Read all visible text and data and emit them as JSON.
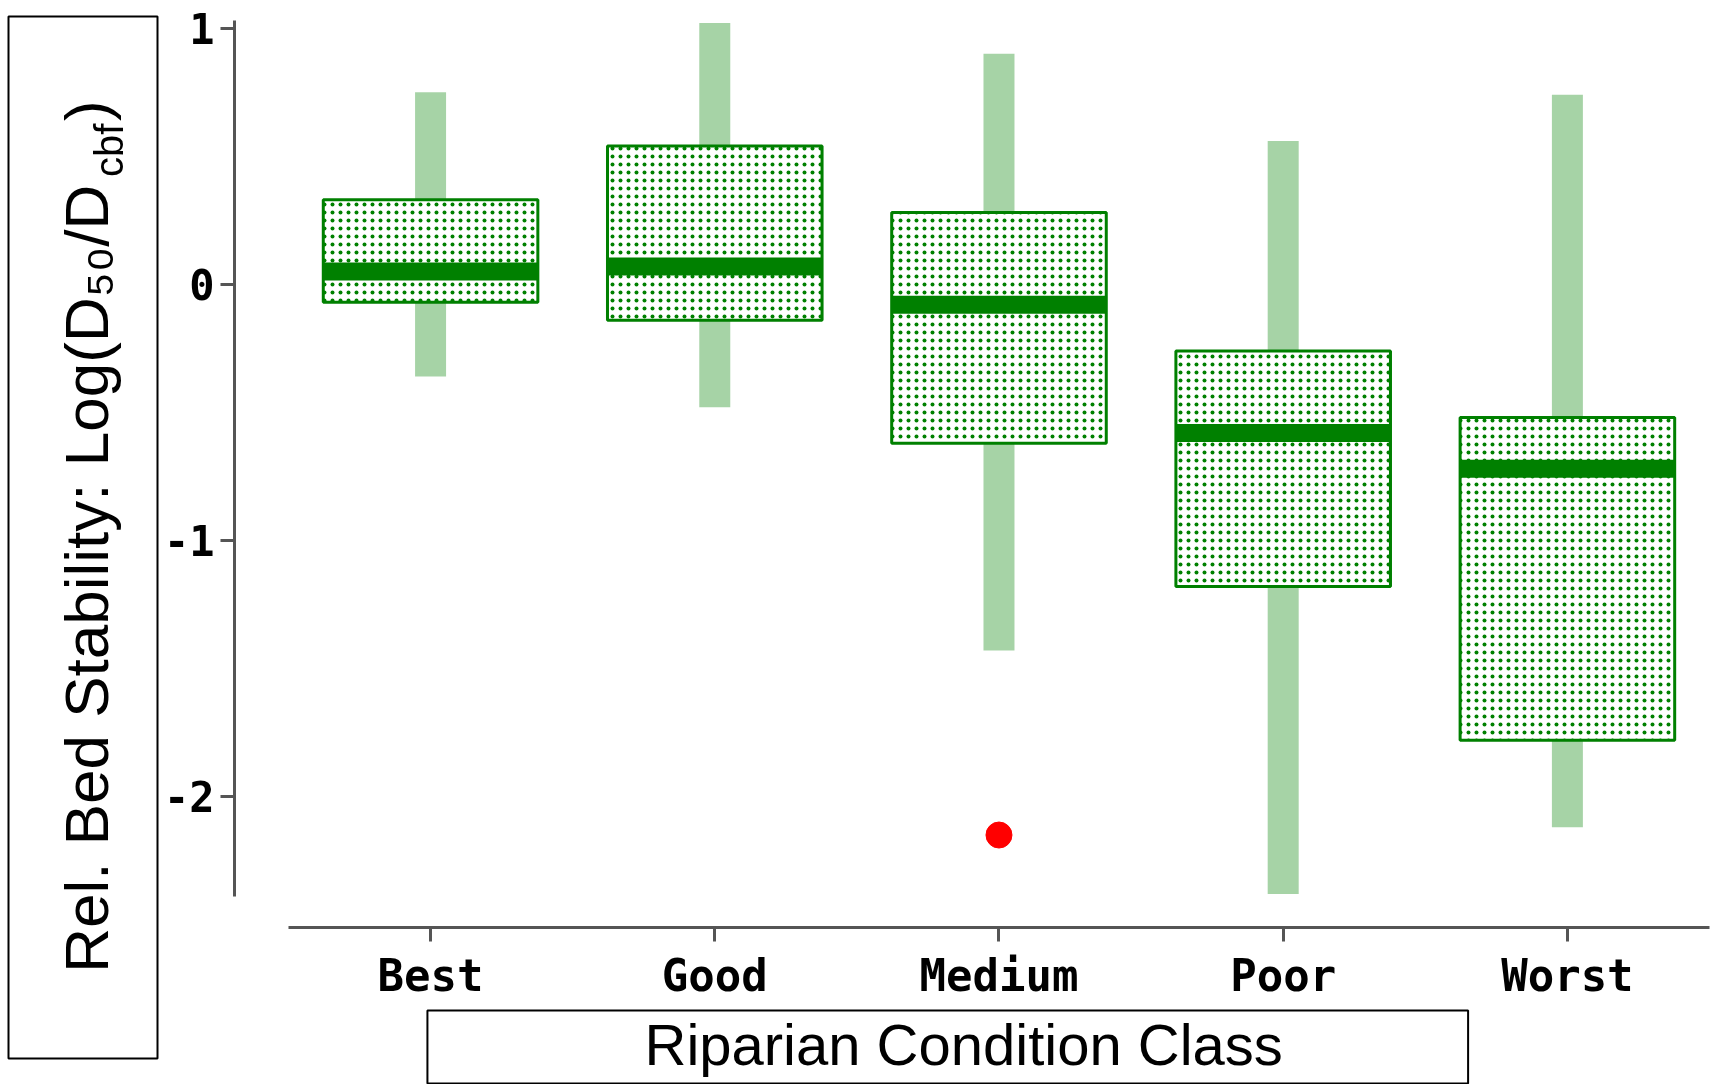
{
  "chart_data": {
    "type": "box",
    "categories": [
      "Best",
      "Good",
      "Medium",
      "Poor",
      "Worst"
    ],
    "xlabel": "Riparian Condition Class",
    "ylabel": "Rel. Bed Stability: Log(D₅₀/D$_{cbf}$)",
    "ylim": [
      -2.39,
      1.03
    ],
    "yticks": [
      -2,
      -1,
      0,
      1
    ],
    "grid": false,
    "marker": "circle",
    "series": [
      {
        "color": "#008000",
        "boxes": [
          {
            "low": -0.36,
            "q1": -0.07,
            "median": 0.05,
            "q3": 0.33,
            "high": 0.75
          },
          {
            "low": -0.48,
            "q1": -0.14,
            "median": 0.07,
            "q3": 0.54,
            "high": 1.02
          },
          {
            "low": -1.43,
            "q1": -0.62,
            "median": -0.08,
            "q3": 0.28,
            "high": 0.9
          },
          {
            "low": -2.38,
            "q1": -1.18,
            "median": -0.58,
            "q3": -0.26,
            "high": 0.56
          },
          {
            "low": -2.12,
            "q1": -1.78,
            "median": -0.72,
            "q3": -0.52,
            "high": 0.74
          }
        ]
      },
      {
        "type": "scatter",
        "x": [
          "Medium"
        ],
        "values": [
          -2.15
        ],
        "color": "#ff0000"
      }
    ]
  }
}
